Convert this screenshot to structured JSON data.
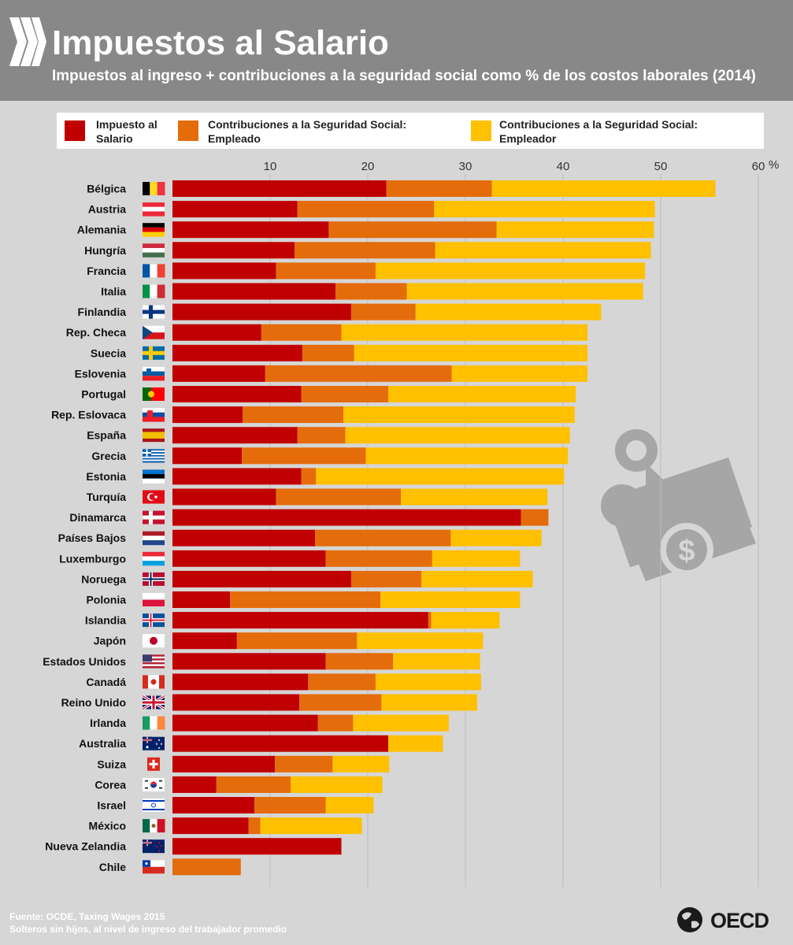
{
  "header": {
    "title": "Impuestos al Salario",
    "subtitle": "Impuestos al ingreso + contribuciones a la seguridad social como % de los costos laborales (2014)"
  },
  "legend": [
    {
      "label_line1": "Impuesto al",
      "label_line2": "Salario",
      "color": "#c00000"
    },
    {
      "label_line1": "Contribuciones a la Seguridad Social:",
      "label_line2": "Empleado",
      "color": "#e46c0a"
    },
    {
      "label_line1": "Contribuciones a la Seguridad Social:",
      "label_line2": "Empleador",
      "color": "#ffc000"
    }
  ],
  "footer": {
    "source": "Fuente: OCDE, Taxing Wages 2015",
    "note": "Solteros sin hijos, al nivel de ingreso del trabajador promedio"
  },
  "logo": {
    "text": "OECD"
  },
  "chart_data": {
    "type": "bar",
    "orientation": "horizontal",
    "stacked": true,
    "xlim": [
      0,
      60
    ],
    "xticks": [
      10,
      20,
      30,
      40,
      50,
      60
    ],
    "unit_label": "%",
    "grid": true,
    "categories": [
      "Bélgica",
      "Austria",
      "Alemania",
      "Hungría",
      "Francia",
      "Italia",
      "Finlandia",
      "Rep. Checa",
      "Suecia",
      "Eslovenia",
      "Portugal",
      "Rep. Eslovaca",
      "España",
      "Grecia",
      "Estonia",
      "Turquía",
      "Dinamarca",
      "Países Bajos",
      "Luxemburgo",
      "Noruega",
      "Polonia",
      "Islandia",
      "Japón",
      "Estados Unidos",
      "Canadá",
      "Reino Unido",
      "Irlanda",
      "Australia",
      "Suiza",
      "Corea",
      "Israel",
      "México",
      "Nueva Zelandia",
      "Chile"
    ],
    "flags": [
      "be",
      "at",
      "de",
      "hu",
      "fr",
      "it",
      "fi",
      "cz",
      "se",
      "si",
      "pt",
      "sk",
      "es",
      "gr",
      "ee",
      "tr",
      "dk",
      "nl",
      "lu",
      "no",
      "pl",
      "is",
      "jp",
      "us",
      "ca",
      "gb",
      "ie",
      "au",
      "ch",
      "kr",
      "il",
      "mx",
      "nz",
      "cl"
    ],
    "series": [
      {
        "name": "Impuesto al Salario",
        "color": "#c00000",
        "values": [
          21.9,
          12.8,
          16.0,
          12.5,
          10.6,
          16.7,
          18.3,
          9.1,
          13.3,
          9.5,
          13.2,
          7.2,
          12.8,
          7.1,
          13.2,
          10.6,
          35.7,
          14.6,
          15.7,
          18.3,
          5.9,
          26.2,
          6.6,
          15.7,
          13.9,
          13.0,
          14.9,
          22.1,
          10.5,
          4.5,
          8.4,
          7.8,
          17.3,
          0.0
        ]
      },
      {
        "name": "Contribuciones a la Seguridad Social: Empleado",
        "color": "#e46c0a",
        "values": [
          10.8,
          14.0,
          17.2,
          14.4,
          10.2,
          7.3,
          6.6,
          8.2,
          5.3,
          19.1,
          8.9,
          10.3,
          4.9,
          12.7,
          1.5,
          12.8,
          2.8,
          13.9,
          10.9,
          7.2,
          15.4,
          0.3,
          12.3,
          6.9,
          6.9,
          8.4,
          3.6,
          0.0,
          5.9,
          7.6,
          7.3,
          1.2,
          0.0,
          7.0
        ]
      },
      {
        "name": "Contribuciones a la Seguridad Social: Empleador",
        "color": "#ffc000",
        "values": [
          22.9,
          22.6,
          16.1,
          22.1,
          27.6,
          24.2,
          19.0,
          25.2,
          23.9,
          13.9,
          19.2,
          23.7,
          23.0,
          20.7,
          25.4,
          15.0,
          0.0,
          9.3,
          9.0,
          11.4,
          14.3,
          7.0,
          12.9,
          8.9,
          10.8,
          9.8,
          9.8,
          5.6,
          5.8,
          9.4,
          4.9,
          10.4,
          0.0,
          0.0
        ]
      }
    ]
  }
}
